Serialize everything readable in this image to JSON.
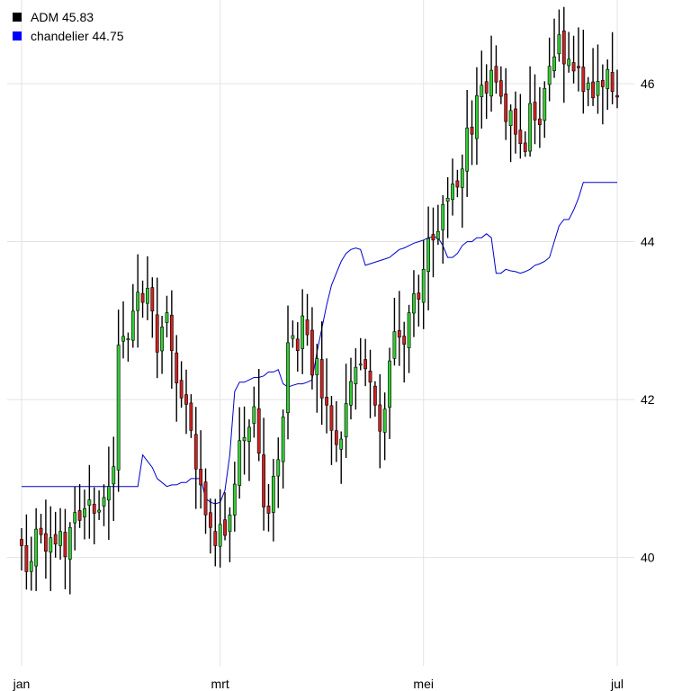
{
  "legend": {
    "items": [
      {
        "label": "ADM 45.83",
        "color": "#000000"
      },
      {
        "label": "chandelier 44.75",
        "color": "#0000ff"
      }
    ]
  },
  "colors": {
    "up_body": "#33cc33",
    "down_body": "#cc2222",
    "wick": "#000000",
    "chandelier": "#0000cc",
    "grid": "#e3e3e3"
  },
  "chart_data": {
    "type": "candlestick",
    "title": "",
    "xlabel": "",
    "ylabel": "",
    "ylim": [
      38.8,
      46.9
    ],
    "y_ticks": [
      40,
      42,
      44,
      46
    ],
    "x_ticks": [
      {
        "label": "jan",
        "index": 0
      },
      {
        "label": "mrt",
        "index": 41
      },
      {
        "label": "mei",
        "index": 83
      },
      {
        "label": "jul",
        "index": 123
      }
    ],
    "grid": true,
    "legend_position": "top-left",
    "n_days": 124,
    "series": [
      {
        "name": "ADM",
        "kind": "ohlc",
        "last": 45.83,
        "closes": [
          40.15,
          39.82,
          39.95,
          40.36,
          40.29,
          40.08,
          40.25,
          40.17,
          40.33,
          40.01,
          40.38,
          40.57,
          40.47,
          40.62,
          40.73,
          40.56,
          40.6,
          40.76,
          40.9,
          41.15,
          42.69,
          42.8,
          42.77,
          43.12,
          43.36,
          43.23,
          43.41,
          43.12,
          42.6,
          42.92,
          43.1,
          42.62,
          42.21,
          42.02,
          41.94,
          41.61,
          41.12,
          40.92,
          40.54,
          40.38,
          40.15,
          40.42,
          40.28,
          40.54,
          40.93,
          41.48,
          41.52,
          41.65,
          41.91,
          41.32,
          40.64,
          40.56,
          41.03,
          41.24,
          41.78,
          42.72,
          42.81,
          42.62,
          43.06,
          42.82,
          42.31,
          42.52,
          42.02,
          41.93,
          41.61,
          41.43,
          41.5,
          41.95,
          42.23,
          42.41,
          42.45,
          42.39,
          42.22,
          41.93,
          41.6,
          41.88,
          42.49,
          42.86,
          42.79,
          42.7,
          43.1,
          43.34,
          43.27,
          43.65,
          44.04,
          44.02,
          44.13,
          44.47,
          44.55,
          44.73,
          44.69,
          44.92,
          45.44,
          45.36,
          45.85,
          45.98,
          45.88,
          46.17,
          46.02,
          45.84,
          45.52,
          45.66,
          45.36,
          45.24,
          45.14,
          45.75,
          45.54,
          45.48,
          45.94,
          46.22,
          46.34,
          46.62,
          46.25,
          46.31,
          46.16,
          46.2,
          45.9,
          46.01,
          45.82,
          46.03,
          45.96,
          46.18,
          45.9,
          45.83
        ]
      },
      {
        "name": "chandelier",
        "kind": "line",
        "last": 44.75,
        "values": [
          40.9,
          40.9,
          40.9,
          40.9,
          40.9,
          40.9,
          40.9,
          40.9,
          40.9,
          40.9,
          40.9,
          40.9,
          40.9,
          40.9,
          40.9,
          40.9,
          40.9,
          40.9,
          40.9,
          40.9,
          40.9,
          40.9,
          40.9,
          40.9,
          40.9,
          41.3,
          41.22,
          41.14,
          41.0,
          40.95,
          40.9,
          40.92,
          40.92,
          40.95,
          40.95,
          41.0,
          41.0,
          41.0,
          40.75,
          40.7,
          40.68,
          40.7,
          40.85,
          41.3,
          42.1,
          42.22,
          42.22,
          42.25,
          42.28,
          42.28,
          42.3,
          42.35,
          42.35,
          42.38,
          42.2,
          42.16,
          42.18,
          42.2,
          42.2,
          42.22,
          42.25,
          42.6,
          42.9,
          43.2,
          43.45,
          43.6,
          43.75,
          43.85,
          43.9,
          43.92,
          43.9,
          43.7,
          43.72,
          43.74,
          43.76,
          43.78,
          43.8,
          43.85,
          43.9,
          43.92,
          43.95,
          43.98,
          44.0,
          44.02,
          44.05,
          44.06,
          44.05,
          43.95,
          43.8,
          43.8,
          43.85,
          43.95,
          44.0,
          44.0,
          44.05,
          44.05,
          44.1,
          44.05,
          43.6,
          43.6,
          43.65,
          43.63,
          43.62,
          43.6,
          43.62,
          43.65,
          43.7,
          43.72,
          43.75,
          43.8,
          44.0,
          44.2,
          44.28,
          44.28,
          44.4,
          44.55,
          44.75,
          44.75,
          44.75,
          44.75,
          44.75,
          44.75,
          44.75,
          44.75
        ]
      }
    ]
  }
}
